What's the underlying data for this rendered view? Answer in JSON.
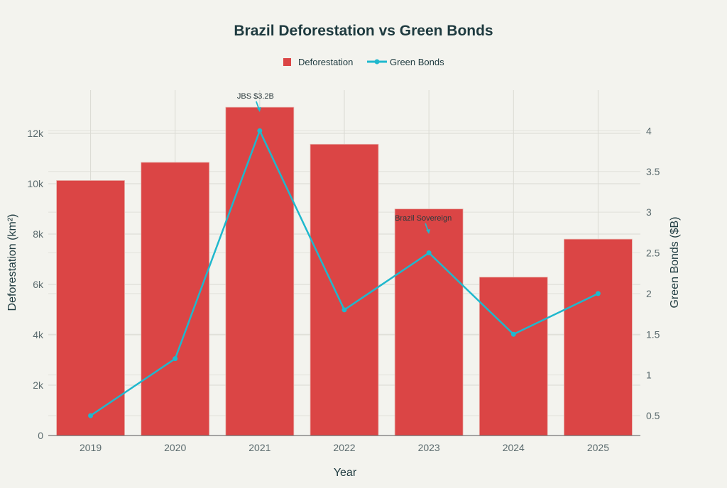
{
  "chart_data": {
    "type": "bar+line",
    "title": "Brazil Deforestation vs Green Bonds",
    "xlabel": "Year",
    "ylabel": "Deforestation (km²)",
    "y2label": "Green Bonds ($B)",
    "categories": [
      "2019",
      "2020",
      "2021",
      "2022",
      "2023",
      "2024",
      "2025"
    ],
    "series": [
      {
        "name": "Deforestation",
        "type": "bar",
        "axis": "left",
        "values": [
          10130,
          10850,
          13040,
          11570,
          9000,
          6290,
          7800
        ],
        "color": "#DB4545"
      },
      {
        "name": "Green Bonds",
        "type": "line",
        "axis": "right",
        "values": [
          0.5,
          1.2,
          4.0,
          1.8,
          2.5,
          1.5,
          2.0
        ],
        "color": "#1FB8CD"
      }
    ],
    "ylim": [
      0,
      13720
    ],
    "y2lim": [
      0.256,
      4.5
    ],
    "yticks": [
      0,
      2000,
      4000,
      6000,
      8000,
      10000,
      12000
    ],
    "yticklabels": [
      "0",
      "2k",
      "4k",
      "6k",
      "8k",
      "10k",
      "12k"
    ],
    "y2ticks": [
      0.5,
      1,
      1.5,
      2,
      2.5,
      3,
      3.5,
      4
    ],
    "y2ticklabels": [
      "0.5",
      "1",
      "1.5",
      "2",
      "2.5",
      "3",
      "3.5",
      "4"
    ],
    "annotations": [
      {
        "text": "JBS $3.2B",
        "category": "2021",
        "value": 4.0
      },
      {
        "text": "Brazil Sovereign",
        "category": "2023",
        "value": 2.5
      }
    ],
    "legend": "top-center",
    "grid": true
  }
}
